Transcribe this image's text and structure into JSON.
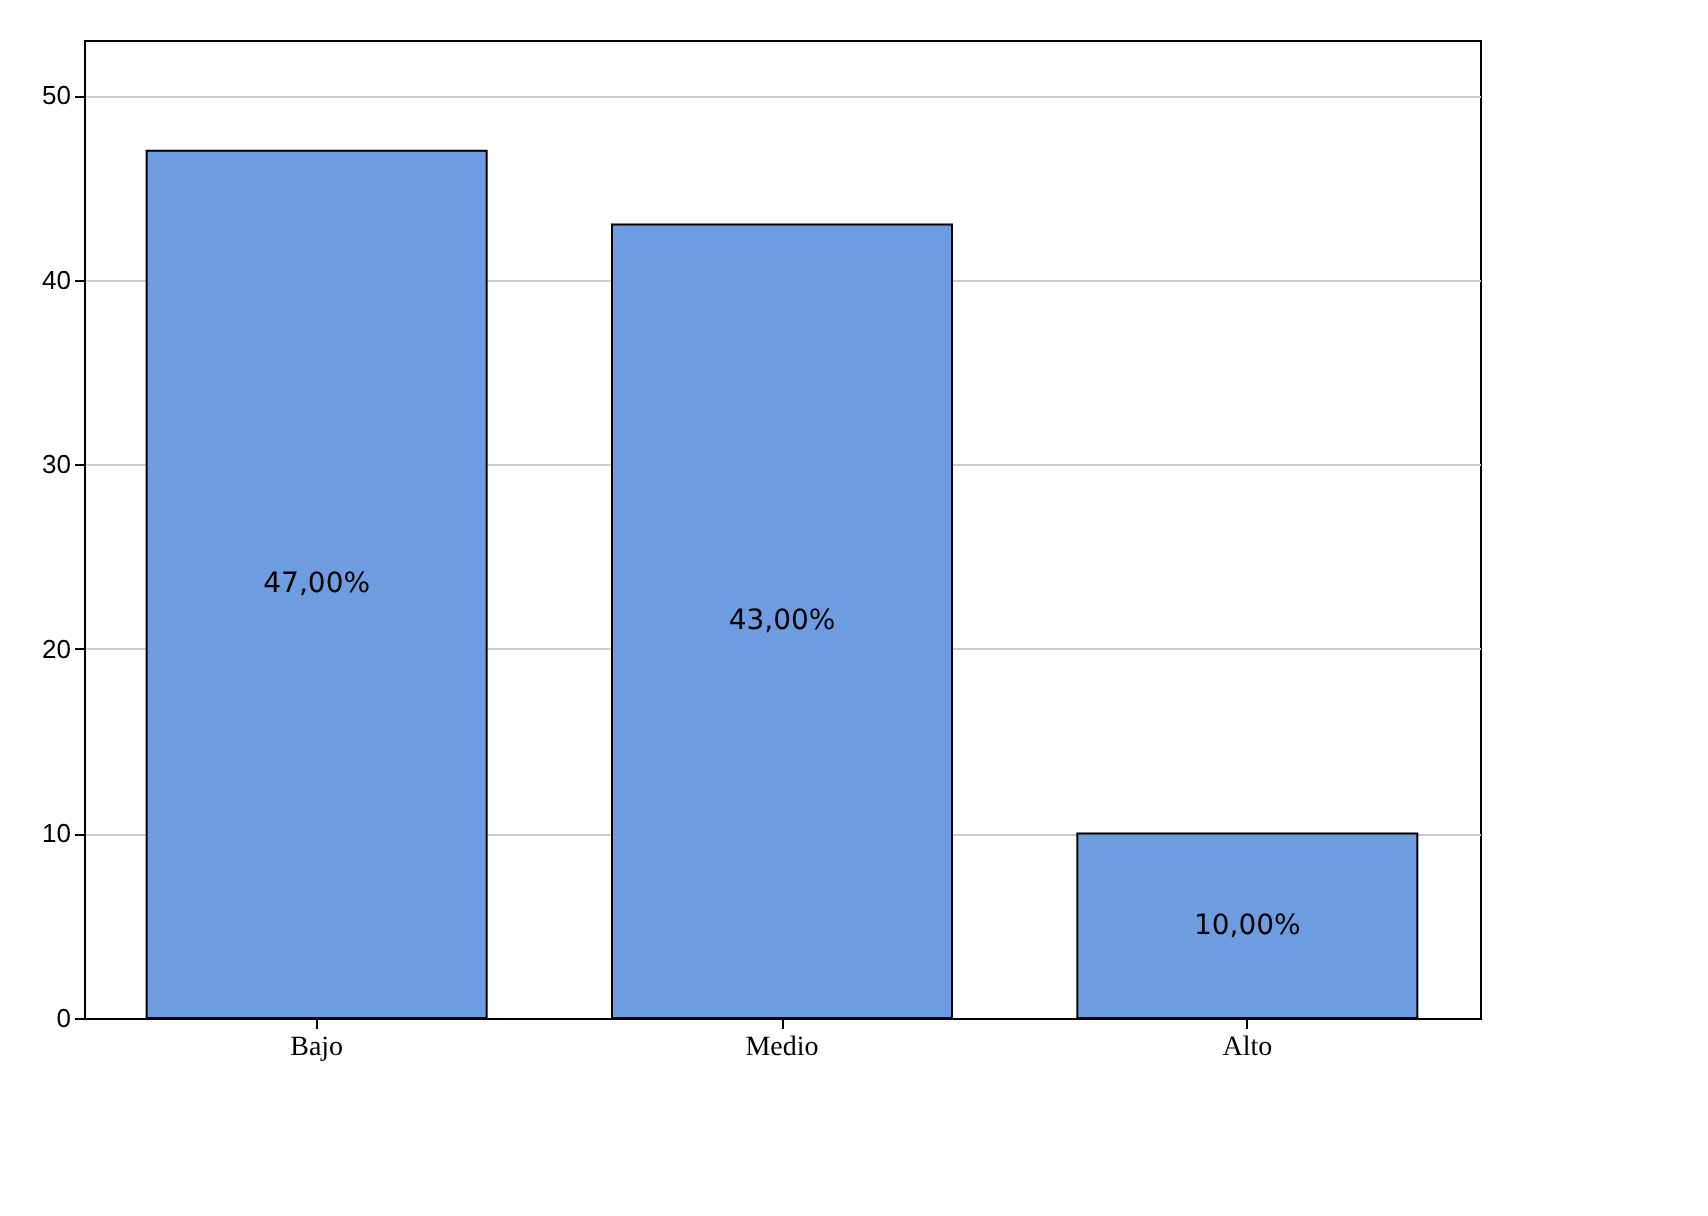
{
  "chart_data": {
    "type": "bar",
    "categories": [
      "Bajo",
      "Medio",
      "Alto"
    ],
    "values": [
      47,
      43,
      10
    ],
    "value_labels": [
      "47,00%",
      "43,00%",
      "10,00%"
    ],
    "color": "#6d9de0",
    "ylim": [
      0,
      53
    ],
    "yticks": [
      0,
      10,
      20,
      30,
      40,
      50
    ],
    "grid": "y"
  }
}
